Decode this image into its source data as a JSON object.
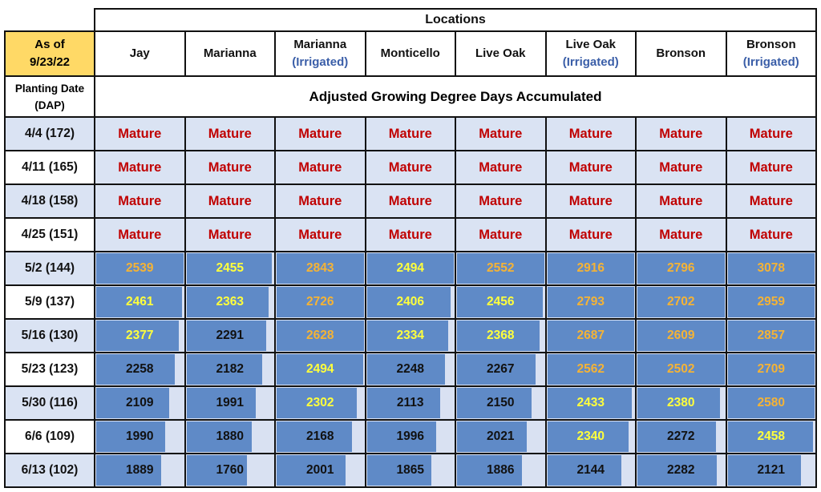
{
  "header": {
    "locations_title": "Locations",
    "as_of_label": "As of",
    "as_of_date": "9/23/22",
    "planting_label": "Planting Date",
    "planting_sub": "(DAP)",
    "metric_title": "Adjusted Growing Degree Days Accumulated"
  },
  "locations": [
    {
      "name": "Jay",
      "sub": ""
    },
    {
      "name": "Marianna",
      "sub": ""
    },
    {
      "name": "Marianna",
      "sub": "(Irrigated)"
    },
    {
      "name": "Monticello",
      "sub": ""
    },
    {
      "name": "Live Oak",
      "sub": ""
    },
    {
      "name": "Live Oak",
      "sub": "(Irrigated)"
    },
    {
      "name": "Bronson",
      "sub": ""
    },
    {
      "name": "Bronson",
      "sub": "(Irrigated)"
    }
  ],
  "mature_label": "Mature",
  "data_bar_scale": {
    "min": 0,
    "max": 2500
  },
  "colors": {
    "mature_text": "#c00000",
    "at_least_2500": "#f5b335",
    "from_2300_to_2499": "#ffff3c",
    "below_2300": "#111111",
    "bar": "#5f8ac7",
    "bar_bg": "#d9e1f2",
    "as_of_bg": "#ffd966"
  },
  "rows": [
    {
      "date": "4/4 (172)",
      "values": [
        "Mature",
        "Mature",
        "Mature",
        "Mature",
        "Mature",
        "Mature",
        "Mature",
        "Mature"
      ]
    },
    {
      "date": "4/11 (165)",
      "values": [
        "Mature",
        "Mature",
        "Mature",
        "Mature",
        "Mature",
        "Mature",
        "Mature",
        "Mature"
      ]
    },
    {
      "date": "4/18 (158)",
      "values": [
        "Mature",
        "Mature",
        "Mature",
        "Mature",
        "Mature",
        "Mature",
        "Mature",
        "Mature"
      ]
    },
    {
      "date": "4/25 (151)",
      "values": [
        "Mature",
        "Mature",
        "Mature",
        "Mature",
        "Mature",
        "Mature",
        "Mature",
        "Mature"
      ]
    },
    {
      "date": "5/2 (144)",
      "values": [
        2539,
        2455,
        2843,
        2494,
        2552,
        2916,
        2796,
        3078
      ]
    },
    {
      "date": "5/9 (137)",
      "values": [
        2461,
        2363,
        2726,
        2406,
        2456,
        2793,
        2702,
        2959
      ]
    },
    {
      "date": "5/16 (130)",
      "values": [
        2377,
        2291,
        2628,
        2334,
        2368,
        2687,
        2609,
        2857
      ]
    },
    {
      "date": "5/23 (123)",
      "values": [
        2258,
        2182,
        2494,
        2248,
        2267,
        2562,
        2502,
        2709
      ]
    },
    {
      "date": "5/30 (116)",
      "values": [
        2109,
        1991,
        2302,
        2113,
        2150,
        2433,
        2380,
        2580
      ]
    },
    {
      "date": "6/6 (109)",
      "values": [
        1990,
        1880,
        2168,
        1996,
        2021,
        2340,
        2272,
        2458
      ]
    },
    {
      "date": "6/13 (102)",
      "values": [
        1889,
        1760,
        2001,
        1865,
        1886,
        2144,
        2282,
        2121
      ]
    }
  ]
}
